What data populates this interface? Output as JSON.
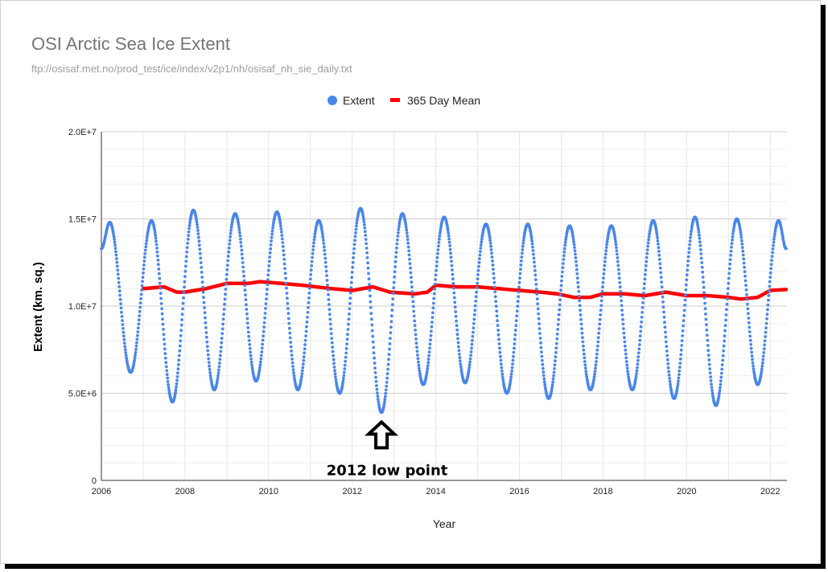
{
  "chart_data": {
    "type": "scatter",
    "title": "OSI Arctic Sea Ice Extent",
    "subtitle": "ftp://osisaf.met.no/prod_test/ice/index/v2p1/nh/osisaf_nh_sie_daily.txt",
    "xlabel": "Year",
    "ylabel": "Extent (km. sq.)",
    "xlim": [
      2006,
      2022.4
    ],
    "ylim": [
      0,
      20000000
    ],
    "x_ticks": [
      2006,
      2008,
      2010,
      2012,
      2014,
      2016,
      2018,
      2020,
      2022
    ],
    "x_tick_labels": [
      "2006",
      "2008",
      "2010",
      "2012",
      "2014",
      "2016",
      "2018",
      "2020",
      "2022"
    ],
    "y_ticks": [
      0,
      5000000,
      10000000,
      15000000,
      20000000
    ],
    "y_tick_labels": [
      "0",
      "5.0E+6",
      "1.0E+7",
      "1.5E+7",
      "2.0E+7"
    ],
    "grid": true,
    "legend_position": "top",
    "colors": {
      "extent": "#4a86e8",
      "mean": "#ff0000"
    },
    "series": [
      {
        "name": "Extent",
        "style": "points",
        "annual_max": [
          [
            2006.2,
            14800000
          ],
          [
            2007.2,
            14900000
          ],
          [
            2008.2,
            15500000
          ],
          [
            2009.2,
            15300000
          ],
          [
            2010.2,
            15400000
          ],
          [
            2011.2,
            14900000
          ],
          [
            2012.2,
            15600000
          ],
          [
            2013.2,
            15300000
          ],
          [
            2014.2,
            15100000
          ],
          [
            2015.2,
            14700000
          ],
          [
            2016.2,
            14700000
          ],
          [
            2017.2,
            14600000
          ],
          [
            2018.2,
            14600000
          ],
          [
            2019.2,
            14900000
          ],
          [
            2020.2,
            15100000
          ],
          [
            2021.2,
            15000000
          ],
          [
            2022.2,
            14900000
          ]
        ],
        "annual_min": [
          [
            2006.7,
            6200000
          ],
          [
            2007.7,
            4500000
          ],
          [
            2008.7,
            5200000
          ],
          [
            2009.7,
            5700000
          ],
          [
            2010.7,
            5200000
          ],
          [
            2011.7,
            5000000
          ],
          [
            2012.7,
            3900000
          ],
          [
            2013.7,
            5500000
          ],
          [
            2014.7,
            5600000
          ],
          [
            2015.7,
            5000000
          ],
          [
            2016.7,
            4700000
          ],
          [
            2017.7,
            5200000
          ],
          [
            2018.7,
            5200000
          ],
          [
            2019.7,
            4700000
          ],
          [
            2020.7,
            4300000
          ],
          [
            2021.7,
            5500000
          ]
        ],
        "start": [
          2006.0,
          13300000
        ],
        "end": [
          2022.38,
          13300000
        ]
      },
      {
        "name": "365 Day Mean",
        "style": "line",
        "x": [
          2007.0,
          2007.5,
          2007.8,
          2008.0,
          2008.5,
          2009.0,
          2009.5,
          2009.8,
          2010.3,
          2010.8,
          2011.5,
          2012.0,
          2012.5,
          2012.9,
          2013.5,
          2013.8,
          2014.0,
          2014.5,
          2015.0,
          2015.5,
          2016.0,
          2016.5,
          2016.9,
          2017.3,
          2017.7,
          2018.0,
          2018.5,
          2019.0,
          2019.5,
          2020.0,
          2020.5,
          2021.0,
          2021.3,
          2021.7,
          2022.0,
          2022.38
        ],
        "y": [
          11000000,
          11100000,
          10800000,
          10800000,
          11000000,
          11300000,
          11300000,
          11400000,
          11300000,
          11200000,
          11000000,
          10900000,
          11100000,
          10800000,
          10700000,
          10800000,
          11200000,
          11100000,
          11100000,
          11000000,
          10900000,
          10800000,
          10700000,
          10500000,
          10500000,
          10700000,
          10700000,
          10600000,
          10800000,
          10600000,
          10600000,
          10500000,
          10400000,
          10500000,
          10900000,
          10950000
        ]
      }
    ],
    "annotations": [
      {
        "text": "2012 low point",
        "x": 2012.7,
        "y": 3900000,
        "shape": "up-arrow"
      }
    ]
  }
}
